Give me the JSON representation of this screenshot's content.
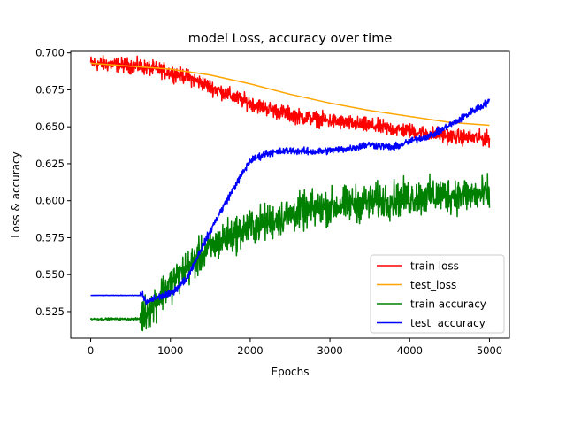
{
  "chart_data": {
    "type": "line",
    "title": "model Loss, accuracy over time",
    "xlabel": "Epochs",
    "ylabel": "Loss & accuracy",
    "xlim": [
      -250,
      5250
    ],
    "ylim": [
      0.507,
      0.701
    ],
    "xticks": [
      0,
      1000,
      2000,
      3000,
      4000,
      5000
    ],
    "xtick_labels": [
      "0",
      "1000",
      "2000",
      "3000",
      "4000",
      "5000"
    ],
    "yticks": [
      0.525,
      0.55,
      0.575,
      0.6,
      0.625,
      0.65,
      0.675,
      0.7
    ],
    "ytick_labels": [
      "0.525",
      "0.550",
      "0.575",
      "0.600",
      "0.625",
      "0.650",
      "0.675",
      "0.700"
    ],
    "grid": false,
    "legend_position": "lower-right",
    "series": [
      {
        "name": "train loss",
        "color": "#ff0000",
        "noise": 0.0025,
        "points": [
          [
            0,
            0.693
          ],
          [
            300,
            0.692
          ],
          [
            600,
            0.691
          ],
          [
            900,
            0.688
          ],
          [
            1200,
            0.684
          ],
          [
            1500,
            0.677
          ],
          [
            1800,
            0.67
          ],
          [
            2000,
            0.666
          ],
          [
            2300,
            0.661
          ],
          [
            2600,
            0.657
          ],
          [
            3000,
            0.654
          ],
          [
            3300,
            0.652
          ],
          [
            3600,
            0.65
          ],
          [
            4000,
            0.647
          ],
          [
            4300,
            0.645
          ],
          [
            4600,
            0.643
          ],
          [
            5000,
            0.642
          ]
        ]
      },
      {
        "name": "test_loss",
        "color": "#ffa500",
        "noise": 0,
        "points": [
          [
            0,
            0.693
          ],
          [
            500,
            0.691
          ],
          [
            1000,
            0.689
          ],
          [
            1500,
            0.685
          ],
          [
            2000,
            0.679
          ],
          [
            2500,
            0.672
          ],
          [
            3000,
            0.666
          ],
          [
            3500,
            0.661
          ],
          [
            4000,
            0.657
          ],
          [
            4500,
            0.653
          ],
          [
            5000,
            0.651
          ]
        ]
      },
      {
        "name": "train accuracy",
        "color": "#008000",
        "noise": 0.006,
        "points": [
          [
            0,
            0.52
          ],
          [
            300,
            0.52
          ],
          [
            600,
            0.52
          ],
          [
            750,
            0.527
          ],
          [
            900,
            0.538
          ],
          [
            1100,
            0.549
          ],
          [
            1300,
            0.559
          ],
          [
            1500,
            0.568
          ],
          [
            1700,
            0.575
          ],
          [
            2000,
            0.582
          ],
          [
            2300,
            0.587
          ],
          [
            2600,
            0.592
          ],
          [
            3000,
            0.596
          ],
          [
            3500,
            0.599
          ],
          [
            4000,
            0.602
          ],
          [
            4500,
            0.604
          ],
          [
            5000,
            0.604
          ]
        ]
      },
      {
        "name": "test  accuracy",
        "color": "#0000ff",
        "noise": 0.0012,
        "points": [
          [
            0,
            0.536
          ],
          [
            400,
            0.536
          ],
          [
            650,
            0.536
          ],
          [
            700,
            0.531
          ],
          [
            800,
            0.534
          ],
          [
            1000,
            0.537
          ],
          [
            1200,
            0.547
          ],
          [
            1400,
            0.569
          ],
          [
            1600,
            0.59
          ],
          [
            1800,
            0.609
          ],
          [
            2000,
            0.627
          ],
          [
            2200,
            0.632
          ],
          [
            2500,
            0.634
          ],
          [
            2800,
            0.633
          ],
          [
            3200,
            0.635
          ],
          [
            3500,
            0.638
          ],
          [
            3800,
            0.636
          ],
          [
            4000,
            0.64
          ],
          [
            4300,
            0.645
          ],
          [
            4600,
            0.654
          ],
          [
            4800,
            0.661
          ],
          [
            5000,
            0.667
          ]
        ]
      }
    ]
  }
}
